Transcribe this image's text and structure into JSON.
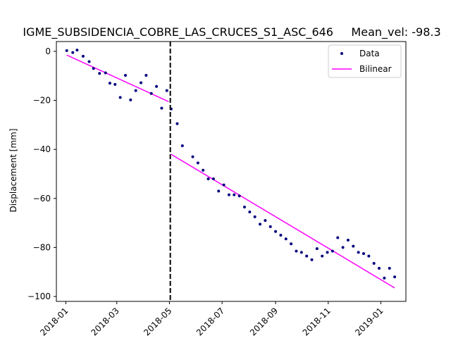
{
  "chart_data": {
    "type": "scatter",
    "title": "IGME_SUBSIDENCIA_COBRE_LAS_CRUCES_S1_ASC_646     Mean_vel: -98.3",
    "xlabel": "",
    "ylabel": "Displacement [mm]",
    "xlim": [
      "2017-12-21",
      "2019-01-30"
    ],
    "ylim": [
      -102,
      4
    ],
    "yticks": [
      0,
      -20,
      -40,
      -60,
      -80,
      -100
    ],
    "xticks": [
      "2018-01-01",
      "2018-03-01",
      "2018-05-01",
      "2018-07-01",
      "2018-09-01",
      "2018-11-01",
      "2019-01-01"
    ],
    "xtick_labels": [
      "2018-01",
      "2018-03",
      "2018-05",
      "2018-07",
      "2018-09",
      "2018-11",
      "2019-01"
    ],
    "grid": false,
    "legend_position": "top-right",
    "breakpoint": "2018-05-02",
    "series": [
      {
        "name": "Data",
        "style": "points",
        "color": "#00007f",
        "points": [
          [
            "2018-01-02",
            0.3
          ],
          [
            "2018-01-09",
            -0.5
          ],
          [
            "2018-01-14",
            0.5
          ],
          [
            "2018-01-21",
            -2.0
          ],
          [
            "2018-01-28",
            -4.2
          ],
          [
            "2018-02-02",
            -7.0
          ],
          [
            "2018-02-09",
            -9.0
          ],
          [
            "2018-02-16",
            -8.8
          ],
          [
            "2018-02-21",
            -13.0
          ],
          [
            "2018-02-27",
            -13.5
          ],
          [
            "2018-03-05",
            -18.8
          ],
          [
            "2018-03-11",
            -9.8
          ],
          [
            "2018-03-17",
            -19.8
          ],
          [
            "2018-03-23",
            -16.0
          ],
          [
            "2018-03-29",
            -12.8
          ],
          [
            "2018-04-04",
            -9.8
          ],
          [
            "2018-04-10",
            -17.2
          ],
          [
            "2018-04-16",
            -14.3
          ],
          [
            "2018-04-22",
            -23.2
          ],
          [
            "2018-04-28",
            -16.0
          ],
          [
            "2018-05-03",
            -23.5
          ],
          [
            "2018-05-10",
            -29.5
          ],
          [
            "2018-05-16",
            -38.5
          ],
          [
            "2018-05-28",
            -43.0
          ],
          [
            "2018-06-03",
            -45.5
          ],
          [
            "2018-06-09",
            -48.5
          ],
          [
            "2018-06-15",
            -52.0
          ],
          [
            "2018-06-21",
            -52.0
          ],
          [
            "2018-06-27",
            -57.0
          ],
          [
            "2018-07-03",
            -54.5
          ],
          [
            "2018-07-09",
            -58.5
          ],
          [
            "2018-07-15",
            -58.5
          ],
          [
            "2018-07-21",
            -59.0
          ],
          [
            "2018-07-27",
            -63.5
          ],
          [
            "2018-08-02",
            -65.5
          ],
          [
            "2018-08-08",
            -67.5
          ],
          [
            "2018-08-14",
            -70.5
          ],
          [
            "2018-08-20",
            -69.0
          ],
          [
            "2018-08-26",
            -71.5
          ],
          [
            "2018-09-01",
            -73.5
          ],
          [
            "2018-09-07",
            -75.0
          ],
          [
            "2018-09-13",
            -76.5
          ],
          [
            "2018-09-19",
            -78.5
          ],
          [
            "2018-09-25",
            -81.5
          ],
          [
            "2018-10-01",
            -82.0
          ],
          [
            "2018-10-07",
            -83.5
          ],
          [
            "2018-10-13",
            -85.0
          ],
          [
            "2018-10-19",
            -80.5
          ],
          [
            "2018-10-25",
            -83.5
          ],
          [
            "2018-10-31",
            -82.0
          ],
          [
            "2018-11-06",
            -81.5
          ],
          [
            "2018-11-12",
            -76.0
          ],
          [
            "2018-11-18",
            -80.0
          ],
          [
            "2018-11-24",
            -77.0
          ],
          [
            "2018-11-30",
            -79.5
          ],
          [
            "2018-12-06",
            -82.0
          ],
          [
            "2018-12-12",
            -82.5
          ],
          [
            "2018-12-18",
            -83.5
          ],
          [
            "2018-12-24",
            -86.5
          ],
          [
            "2018-12-30",
            -88.5
          ],
          [
            "2019-01-05",
            -92.5
          ],
          [
            "2019-01-11",
            -88.5
          ],
          [
            "2019-01-17",
            -92.0
          ]
        ]
      },
      {
        "name": "Bilinear",
        "style": "line",
        "color": "#ff00ff",
        "segments": [
          [
            [
              "2018-01-02",
              -1.5
            ],
            [
              "2018-04-30",
              -20.5
            ]
          ],
          [
            [
              "2018-05-03",
              -42.0
            ],
            [
              "2019-01-17",
              -96.5
            ]
          ]
        ]
      }
    ]
  }
}
